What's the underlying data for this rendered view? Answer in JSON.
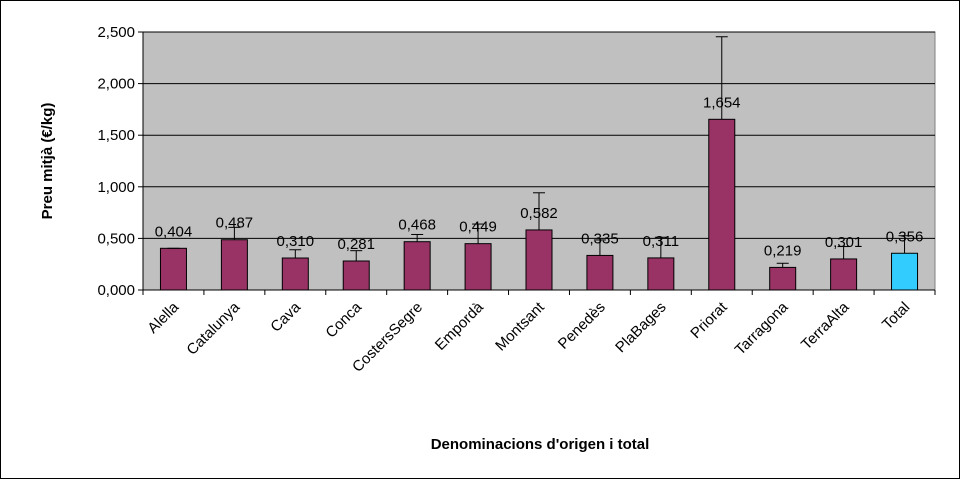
{
  "chart_data": {
    "type": "bar",
    "categories": [
      "Alella",
      "Catalunya",
      "Cava",
      "Conca",
      "CostersSegre",
      "Empordà",
      "Montsant",
      "Penedès",
      "PlaBages",
      "Priorat",
      "Tarragona",
      "TerraAlta",
      "Total"
    ],
    "values": [
      0.404,
      0.487,
      0.31,
      0.281,
      0.468,
      0.449,
      0.582,
      0.335,
      0.311,
      1.654,
      0.219,
      0.301,
      0.356
    ],
    "value_labels": [
      "0,404",
      "0,487",
      "0,310",
      "0,281",
      "0,468",
      "0,449",
      "0,582",
      "0,335",
      "0,311",
      "1,654",
      "0,219",
      "0,301",
      "0,356"
    ],
    "errors": [
      0,
      0.12,
      0.08,
      0.1,
      0.07,
      0.19,
      0.36,
      0.15,
      0.2,
      0.8,
      0.04,
      0.12,
      0.17
    ],
    "colors": [
      "#993366",
      "#993366",
      "#993366",
      "#993366",
      "#993366",
      "#993366",
      "#993366",
      "#993366",
      "#993366",
      "#993366",
      "#993366",
      "#993366",
      "#33ccff"
    ],
    "xlabel": "Denominacions d'origen i total",
    "ylabel": "Preu mitjà (€/kg)",
    "ylim": [
      0,
      2.5
    ],
    "yticks": [
      {
        "value": 0,
        "label": "0,000"
      },
      {
        "value": 0.5,
        "label": "0,500"
      },
      {
        "value": 1,
        "label": "1,000"
      },
      {
        "value": 1.5,
        "label": "1,500"
      },
      {
        "value": 2,
        "label": "2,000"
      },
      {
        "value": 2.5,
        "label": "2,500"
      }
    ],
    "grid": true
  }
}
